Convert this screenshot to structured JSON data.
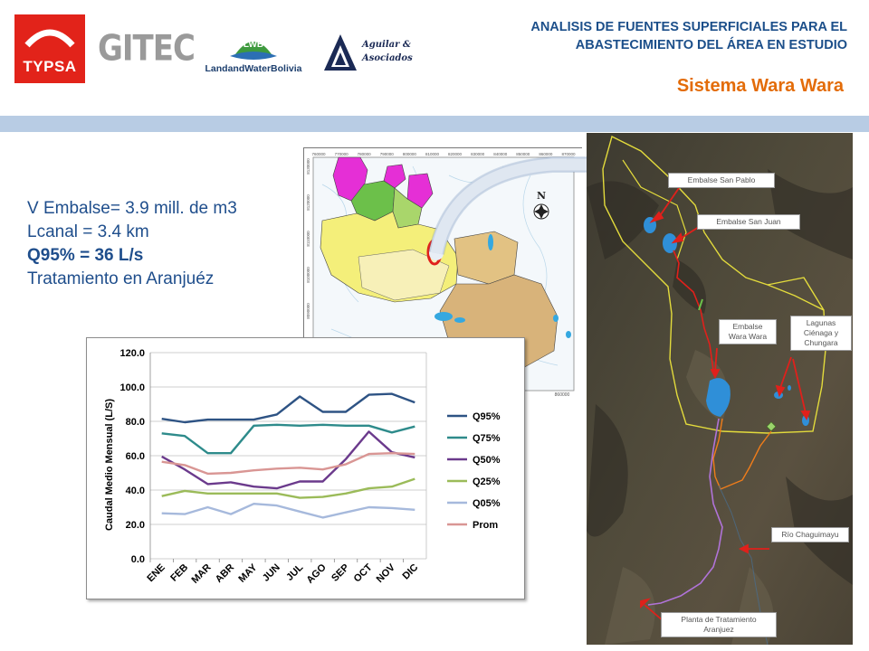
{
  "header": {
    "title_line1": "ANALISIS DE FUENTES SUPERFICIALES PARA EL",
    "title_line2": "ABASTECIMIENTO DEL ÁREA EN ESTUDIO",
    "subtitle": "Sistema Wara Wara"
  },
  "logos": {
    "typsa": "TYPSA",
    "gitec": "GITEC",
    "lwb_badge": "LWB",
    "lwb_name": "LandandWaterBolivia",
    "aguilar_line1": "Aguilar &",
    "aguilar_line2": "Asociados"
  },
  "facts": {
    "line1": "V Embalse= 3.9 mill. de m3",
    "line2": "Lcanal = 3.4 km",
    "line3": "Q95% = 36 L/s",
    "line4": "Tratamiento en Aranjuéz"
  },
  "map": {
    "north": "N",
    "top_ticks": [
      "760000",
      "770000",
      "780000",
      "790000",
      "800000",
      "810000",
      "820000",
      "830000",
      "840000",
      "850000",
      "860000",
      "870000"
    ],
    "left_ticks": [
      "8130000",
      "8120000",
      "8110000",
      "8100000",
      "8090000",
      "8080000",
      "8070000"
    ],
    "bottom_tick": "860000",
    "colors": {
      "magenta": "#e52fd6",
      "green": "#6cc04a",
      "yellow": "#f4ef7a",
      "lightyellow": "#f7f0b8",
      "tan": "#d8b37a",
      "lake": "#35a8e0"
    }
  },
  "satellite": {
    "labels": {
      "san_pablo": "Embalse San Pablo",
      "san_juan": "Embalse San Juan",
      "wara_wara_1": "Embalse",
      "wara_wara_2": "Wara Wara",
      "lagunas_1": "Lagunas",
      "lagunas_2": "Ciénaga y",
      "lagunas_3": "Chungara",
      "chaguimayu": "Río Chaguimayu",
      "planta_1": "Planta de Tratamiento",
      "planta_2": "Aranjuez"
    }
  },
  "chart_data": {
    "type": "line",
    "ylabel": "Caudal Medio Mensual (L/S)",
    "xlabel": "",
    "ylim": [
      0,
      120
    ],
    "yticks": [
      "0.0",
      "20.0",
      "40.0",
      "60.0",
      "80.0",
      "100.0",
      "120.0"
    ],
    "categories": [
      "ENE",
      "FEB",
      "MAR",
      "ABR",
      "MAY",
      "JUN",
      "JUL",
      "AGO",
      "SEP",
      "OCT",
      "NOV",
      "DIC"
    ],
    "grid": true,
    "legend_position": "right",
    "series": [
      {
        "name": "Q95%",
        "color": "#2e5384",
        "values": [
          81.5,
          79.5,
          81,
          81,
          81,
          84,
          94.5,
          85.5,
          85.5,
          95.5,
          96,
          91
        ]
      },
      {
        "name": "Q75%",
        "color": "#2e8b8b",
        "values": [
          73,
          71.5,
          61.5,
          61.5,
          77.5,
          78,
          77.5,
          78,
          77.5,
          77.5,
          73.5,
          77
        ]
      },
      {
        "name": "Q50%",
        "color": "#6b3a8c",
        "values": [
          59.5,
          52,
          43.5,
          44.5,
          42,
          41,
          45,
          45,
          58,
          74,
          62,
          59
        ]
      },
      {
        "name": "Q25%",
        "color": "#9bbb59",
        "values": [
          36.5,
          39.5,
          38,
          38,
          38,
          38,
          35.5,
          36,
          38,
          41,
          42,
          46.5
        ]
      },
      {
        "name": "Q05%",
        "color": "#a6b9dc",
        "values": [
          26.5,
          26,
          30,
          26,
          32,
          31,
          27.5,
          24,
          27,
          30,
          29.5,
          28.5
        ]
      },
      {
        "name": "Prom",
        "color": "#d99694",
        "values": [
          56.5,
          54.5,
          49.5,
          50,
          51.5,
          52.5,
          53,
          52,
          55,
          61,
          61.5,
          61
        ]
      }
    ]
  }
}
